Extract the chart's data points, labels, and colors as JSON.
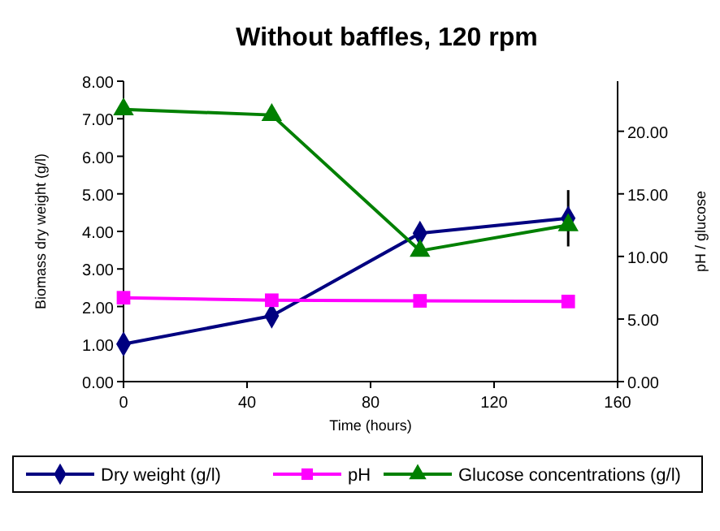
{
  "chart_data": {
    "type": "line",
    "title": "Without baffles, 120 rpm",
    "xlabel": "Time (hours)",
    "ylabel": "Biomass dry weight (g/l)",
    "y2label": "pH / glucose",
    "x": [
      0,
      48,
      96,
      144
    ],
    "series": [
      {
        "name": "Dry weight (g/l)",
        "color": "#000080",
        "marker": "diamond",
        "values": [
          1.0,
          1.75,
          3.95,
          4.35
        ],
        "errors": [
          null,
          null,
          null,
          0.75
        ]
      },
      {
        "name": "pH",
        "color": "#ff00ff",
        "marker": "square",
        "axis": "y2",
        "values": [
          6.7,
          6.5,
          6.45,
          6.4
        ]
      },
      {
        "name": "Glucose concentrations (g/l)",
        "color": "#008000",
        "marker": "triangle",
        "axis": "y2",
        "values": [
          21.75,
          21.3,
          10.45,
          12.5
        ]
      }
    ],
    "xlim": [
      0,
      160
    ],
    "xticks": [
      0,
      40,
      80,
      120,
      160
    ],
    "ylim": [
      0,
      8
    ],
    "yticks": [
      {
        "value": 0,
        "label": "0.00"
      },
      {
        "value": 1,
        "label": "1.00"
      },
      {
        "value": 2,
        "label": "2.00"
      },
      {
        "value": 3,
        "label": "3.00"
      },
      {
        "value": 4,
        "label": "4.00"
      },
      {
        "value": 5,
        "label": "5.00"
      },
      {
        "value": 6,
        "label": "6.00"
      },
      {
        "value": 7,
        "label": "7.00"
      },
      {
        "value": 8,
        "label": "8.00"
      }
    ],
    "y2lim": [
      0,
      24
    ],
    "y2ticks": [
      {
        "value": 0,
        "label": "0.00"
      },
      {
        "value": 5,
        "label": "5.00"
      },
      {
        "value": 10,
        "label": "10.00"
      },
      {
        "value": 15,
        "label": "15.00"
      },
      {
        "value": 20,
        "label": "20.00"
      }
    ],
    "grid": false,
    "legend": "bottom",
    "line_style": "solid"
  }
}
